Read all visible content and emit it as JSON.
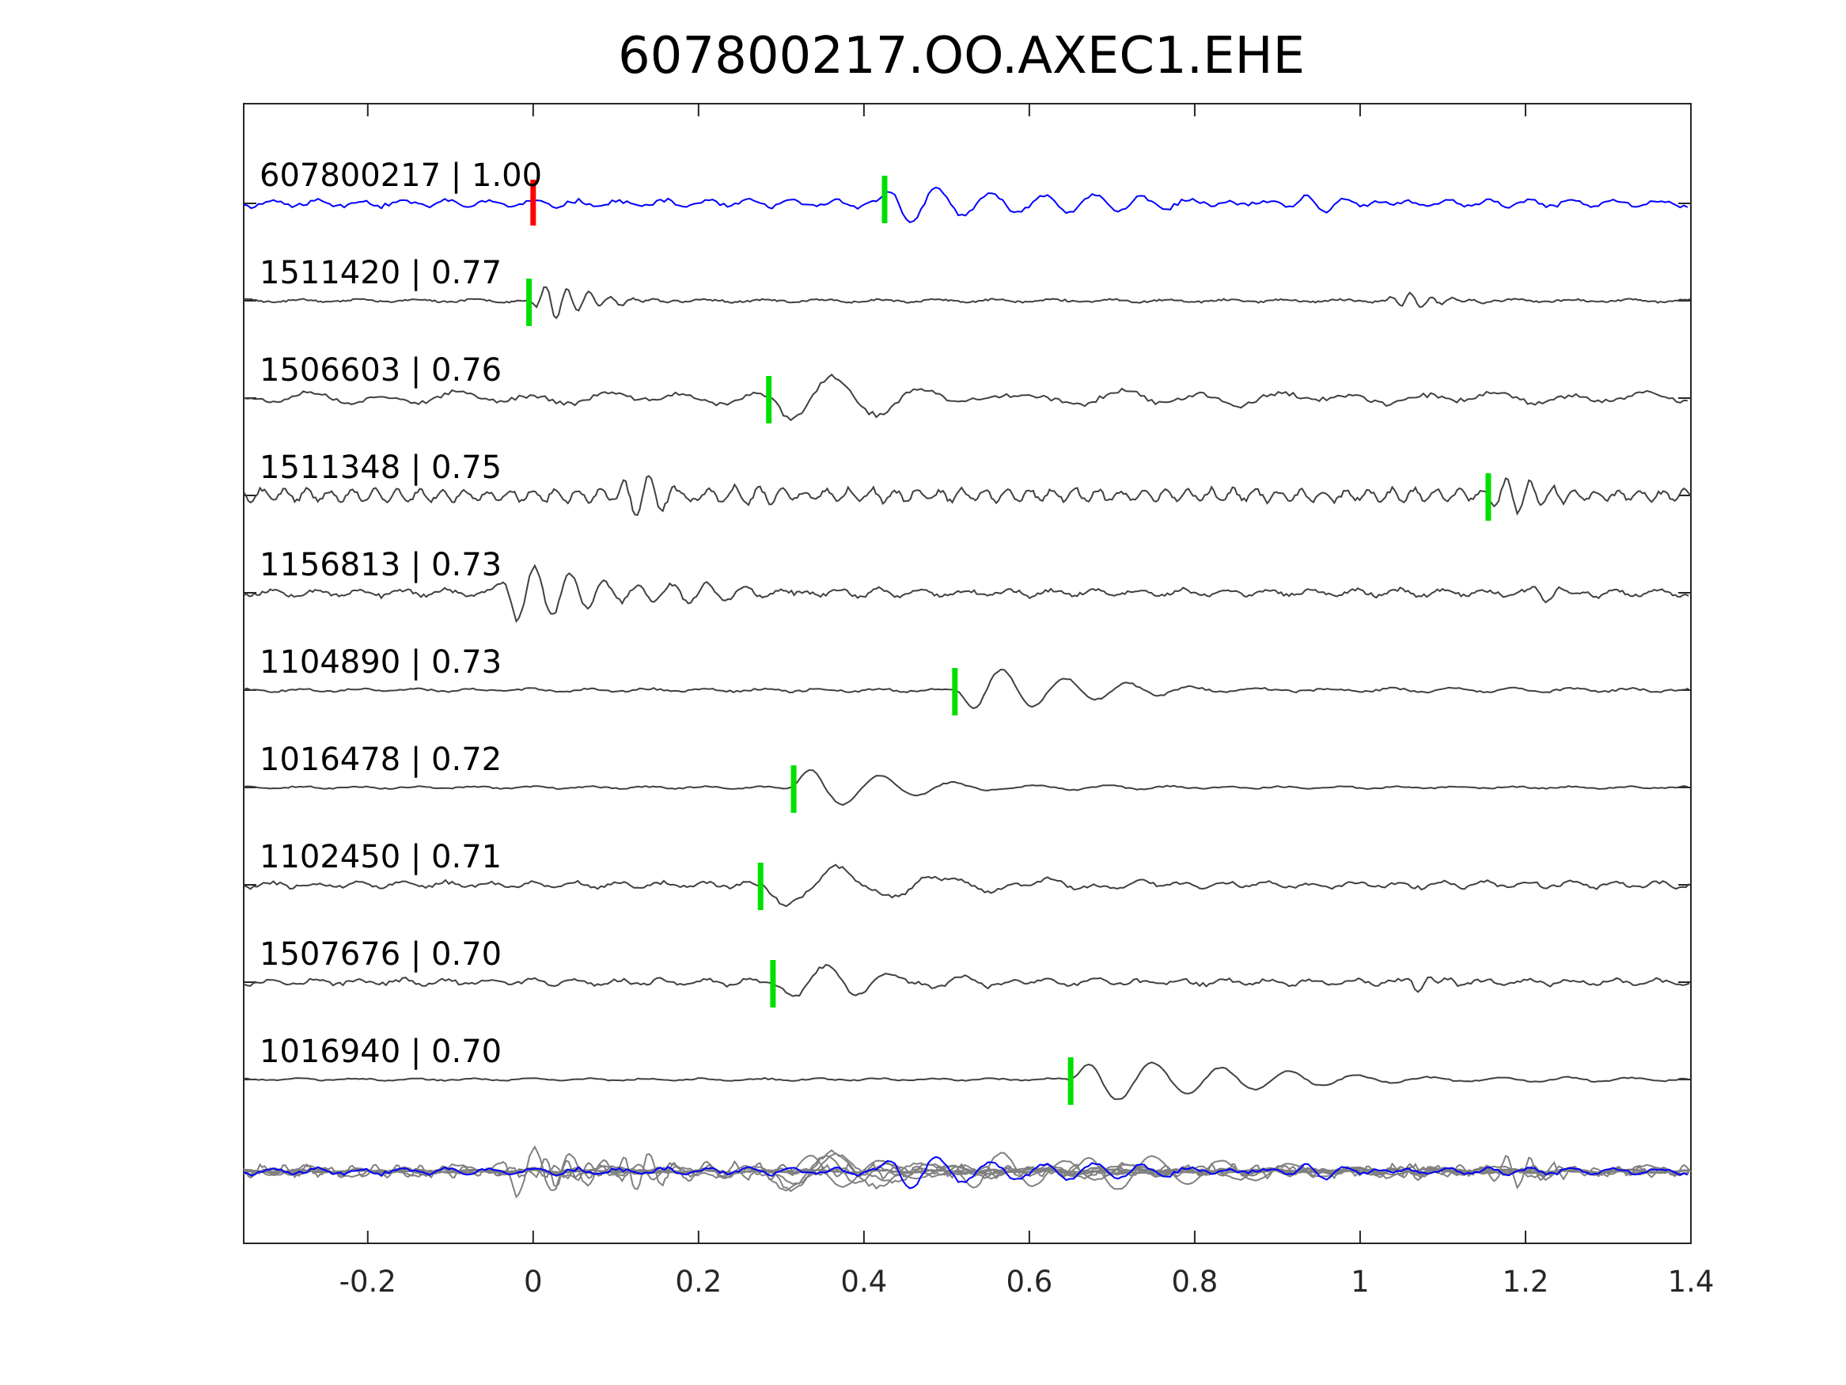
{
  "chart_data": {
    "type": "line",
    "title": "607800217.OO.AXEC1.EHE",
    "xlabel": "",
    "ylabel": "",
    "xlim": [
      -0.35,
      1.4
    ],
    "xticks": [
      {
        "value": -0.2,
        "label": "-0.2"
      },
      {
        "value": 0,
        "label": "0"
      },
      {
        "value": 0.2,
        "label": "0.2"
      },
      {
        "value": 0.4,
        "label": "0.4"
      },
      {
        "value": 0.6,
        "label": "0.6"
      },
      {
        "value": 0.8,
        "label": "0.8"
      },
      {
        "value": 1,
        "label": "1"
      },
      {
        "value": 1.2,
        "label": "1.2"
      },
      {
        "value": 1.4,
        "label": "1.4"
      }
    ],
    "grid": false,
    "colors": {
      "template": "#0000ff",
      "trace": "#404040",
      "stack": "#808080",
      "template_pick": "#ff0000",
      "match_pick": "#00e000"
    },
    "series": [
      {
        "name": "607800217 | 1.00",
        "id": "607800217",
        "cc": "1.00",
        "pick_x": 0.0,
        "arrival_x": 0.425,
        "template": true
      },
      {
        "name": "1511420 | 0.77",
        "id": "1511420",
        "cc": "0.77",
        "pick_x": -0.005
      },
      {
        "name": "1506603 | 0.76",
        "id": "1506603",
        "cc": "0.76",
        "pick_x": 0.285
      },
      {
        "name": "1511348 | 0.75",
        "id": "1511348",
        "cc": "0.75",
        "pick_x": 1.155
      },
      {
        "name": "1156813 | 0.73",
        "id": "1156813",
        "cc": "0.73"
      },
      {
        "name": "1104890 | 0.73",
        "id": "1104890",
        "cc": "0.73",
        "pick_x": 0.51
      },
      {
        "name": "1016478 | 0.72",
        "id": "1016478",
        "cc": "0.72",
        "pick_x": 0.315
      },
      {
        "name": "1102450 | 0.71",
        "id": "1102450",
        "cc": "0.71",
        "pick_x": 0.275
      },
      {
        "name": "1507676 | 0.70",
        "id": "1507676",
        "cc": "0.70",
        "pick_x": 0.29
      },
      {
        "name": "1016940 | 0.70",
        "id": "1016940",
        "cc": "0.70",
        "pick_x": 0.65
      }
    ]
  }
}
